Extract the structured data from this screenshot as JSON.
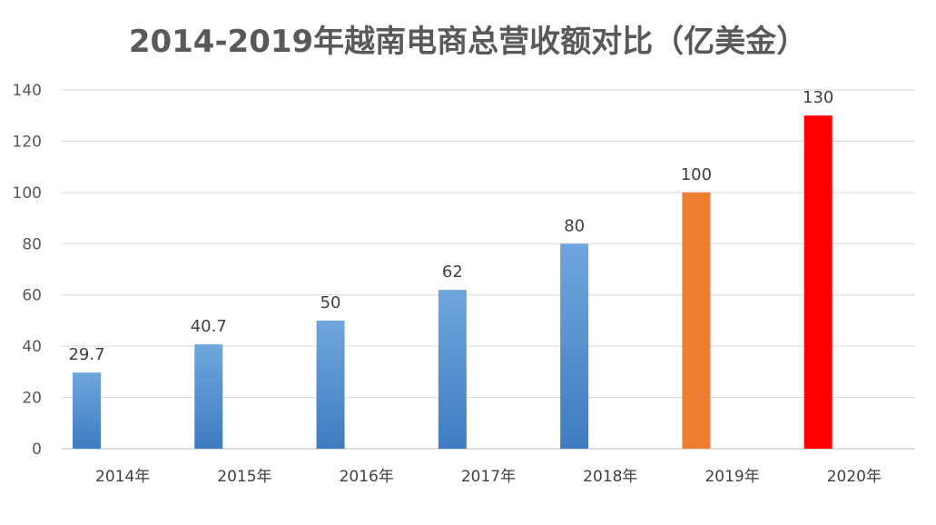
{
  "chart_data": {
    "type": "bar",
    "title": "2014-2019年越南电商总营收额对比（亿美金）",
    "xlabel": "",
    "ylabel": "",
    "categories": [
      "2014年",
      "2015年",
      "2016年",
      "2017年",
      "2018年",
      "2019年",
      "2020年"
    ],
    "values": [
      29.7,
      40.7,
      50,
      62,
      80,
      100,
      130
    ],
    "data_labels": [
      "29.7",
      "40.7",
      "50",
      "62",
      "80",
      "100",
      "130"
    ],
    "bar_colors": [
      "#4a86c8",
      "#4a86c8",
      "#4a86c8",
      "#4a86c8",
      "#4a86c8",
      "#ed7d31",
      "#ff0000"
    ],
    "ylim": [
      0,
      140
    ],
    "yticks": [
      0,
      20,
      40,
      60,
      80,
      100,
      120,
      140
    ],
    "grid": true,
    "legend": "none"
  }
}
